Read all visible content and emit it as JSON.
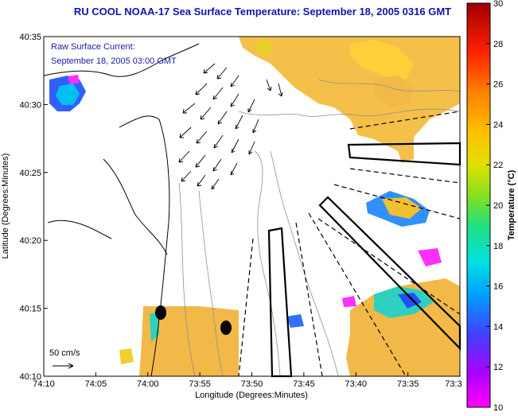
{
  "title": "RU COOL  NOAA-17  Sea Surface Temperature:  September 18, 2005 0316 GMT",
  "colors": {
    "title": "#1212b0",
    "overlay_text": "#1a1aa8",
    "land": "#ffffff",
    "frame": "#000000"
  },
  "overlay": {
    "line1": "Raw Surface Current:",
    "line2": "September 18, 2005 03:00 GMT"
  },
  "scale_label": "50 cm/s",
  "axes": {
    "x_label": "Longitude (Degrees:Minutes)",
    "y_label": "Latitude (Degrees:Minutes)",
    "x_ticks": [
      "74:10",
      "74:05",
      "74:00",
      "73:55",
      "73:50",
      "73:45",
      "73:40",
      "73:35",
      "73:3"
    ],
    "y_ticks": [
      "40:35",
      "40:30",
      "40:25",
      "40:20",
      "40:15",
      "40:10"
    ]
  },
  "colorbar": {
    "label": "Temperature (°C)",
    "ticks": [
      "30",
      "28",
      "26",
      "24",
      "22",
      "20",
      "18",
      "16",
      "14",
      "12",
      "10"
    ],
    "min": 10,
    "max": 30
  }
}
